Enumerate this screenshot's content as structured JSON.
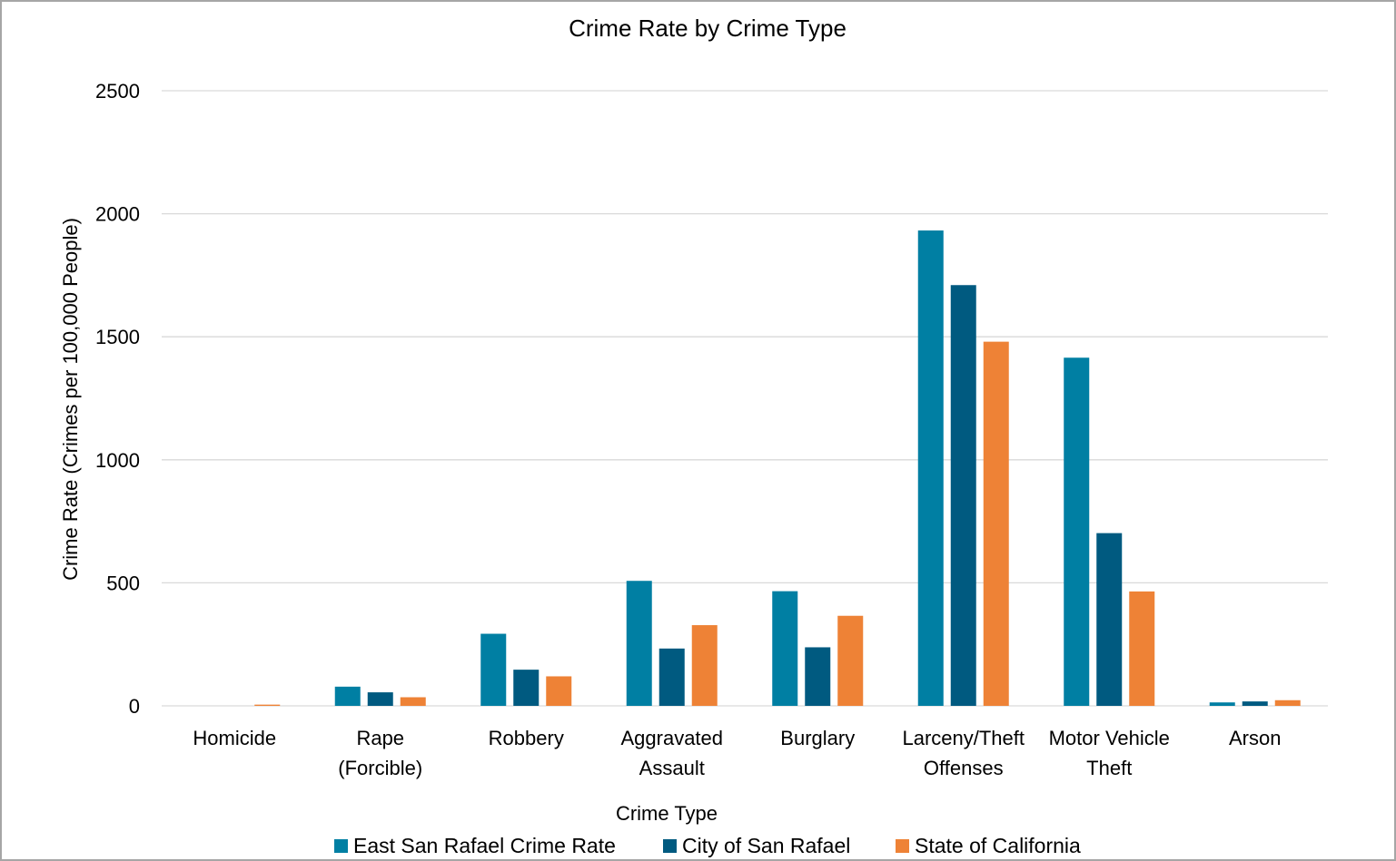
{
  "chart_data": {
    "type": "bar",
    "title": "Crime Rate by Crime Type",
    "xlabel": "Crime Type",
    "ylabel": "Crime Rate (Crimes per 100,000 People)",
    "ylim": [
      0,
      2500
    ],
    "yticks": [
      "0",
      "500",
      "1000",
      "1500",
      "2000",
      "2500"
    ],
    "ytick_values": [
      0,
      500,
      1000,
      1500,
      2000,
      2500
    ],
    "grid": true,
    "legend_position": "bottom",
    "categories": [
      [
        "Homicide"
      ],
      [
        "Rape",
        "(Forcible)"
      ],
      [
        "Robbery"
      ],
      [
        "Aggravated",
        "Assault"
      ],
      [
        "Burglary"
      ],
      [
        "Larceny/Theft",
        "Offenses"
      ],
      [
        "Motor Vehicle",
        "Theft"
      ],
      [
        "Arson"
      ]
    ],
    "series": [
      {
        "name": "East San Rafael Crime Rate",
        "color": "#007fa3",
        "values": [
          0,
          78,
          293,
          508,
          466,
          1932,
          1415,
          14
        ]
      },
      {
        "name": "City of San Rafael",
        "color": "#005a80",
        "values": [
          0,
          55,
          147,
          233,
          238,
          1710,
          702,
          18
        ]
      },
      {
        "name": "State of California",
        "color": "#ee8236",
        "values": [
          5,
          35,
          120,
          328,
          366,
          1480,
          465,
          23
        ]
      }
    ]
  }
}
